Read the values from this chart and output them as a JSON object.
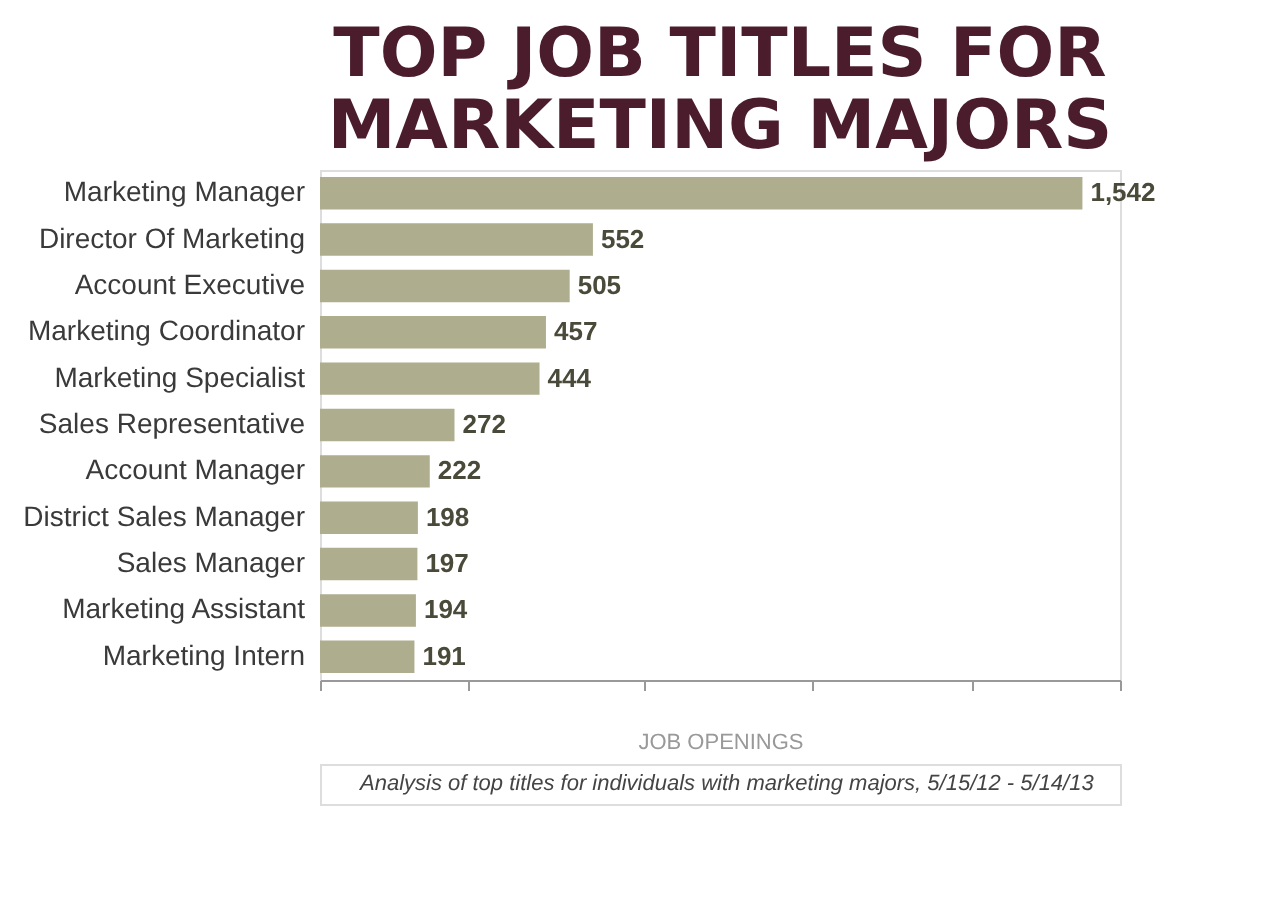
{
  "chart_data": {
    "type": "bar",
    "orientation": "horizontal",
    "title": [
      "TOP JOB TITLES FOR",
      "MARKETING MAJORS"
    ],
    "categories": [
      "Marketing Manager",
      "Director Of Marketing",
      "Account Executive",
      "Marketing Coordinator",
      "Marketing Specialist",
      "Sales Representative",
      "Account Manager",
      "District Sales Manager",
      "Sales Manager",
      "Marketing Assistant",
      "Marketing Intern"
    ],
    "values": [
      1542,
      552,
      505,
      457,
      444,
      272,
      222,
      198,
      197,
      194,
      191
    ],
    "value_labels": [
      "1,542",
      "552",
      "505",
      "457",
      "444",
      "272",
      "222",
      "198",
      "197",
      "194",
      "191"
    ],
    "color": "#aeae8e",
    "xlabel": "JOB OPENINGS",
    "xlim": [
      0,
      1618
    ],
    "xticks": [
      {
        "value": 0,
        "label": null
      },
      {
        "value": 298,
        "label": null
      },
      {
        "value": 657,
        "label": null
      },
      {
        "value": 994,
        "label": null
      },
      {
        "value": 1320,
        "label": null
      },
      {
        "value": 1618,
        "label": null
      }
    ],
    "grid": false,
    "annotations": [
      "Analysis of top titles for individuals with marketing majors, 5/15/12 - 5/14/13"
    ]
  }
}
